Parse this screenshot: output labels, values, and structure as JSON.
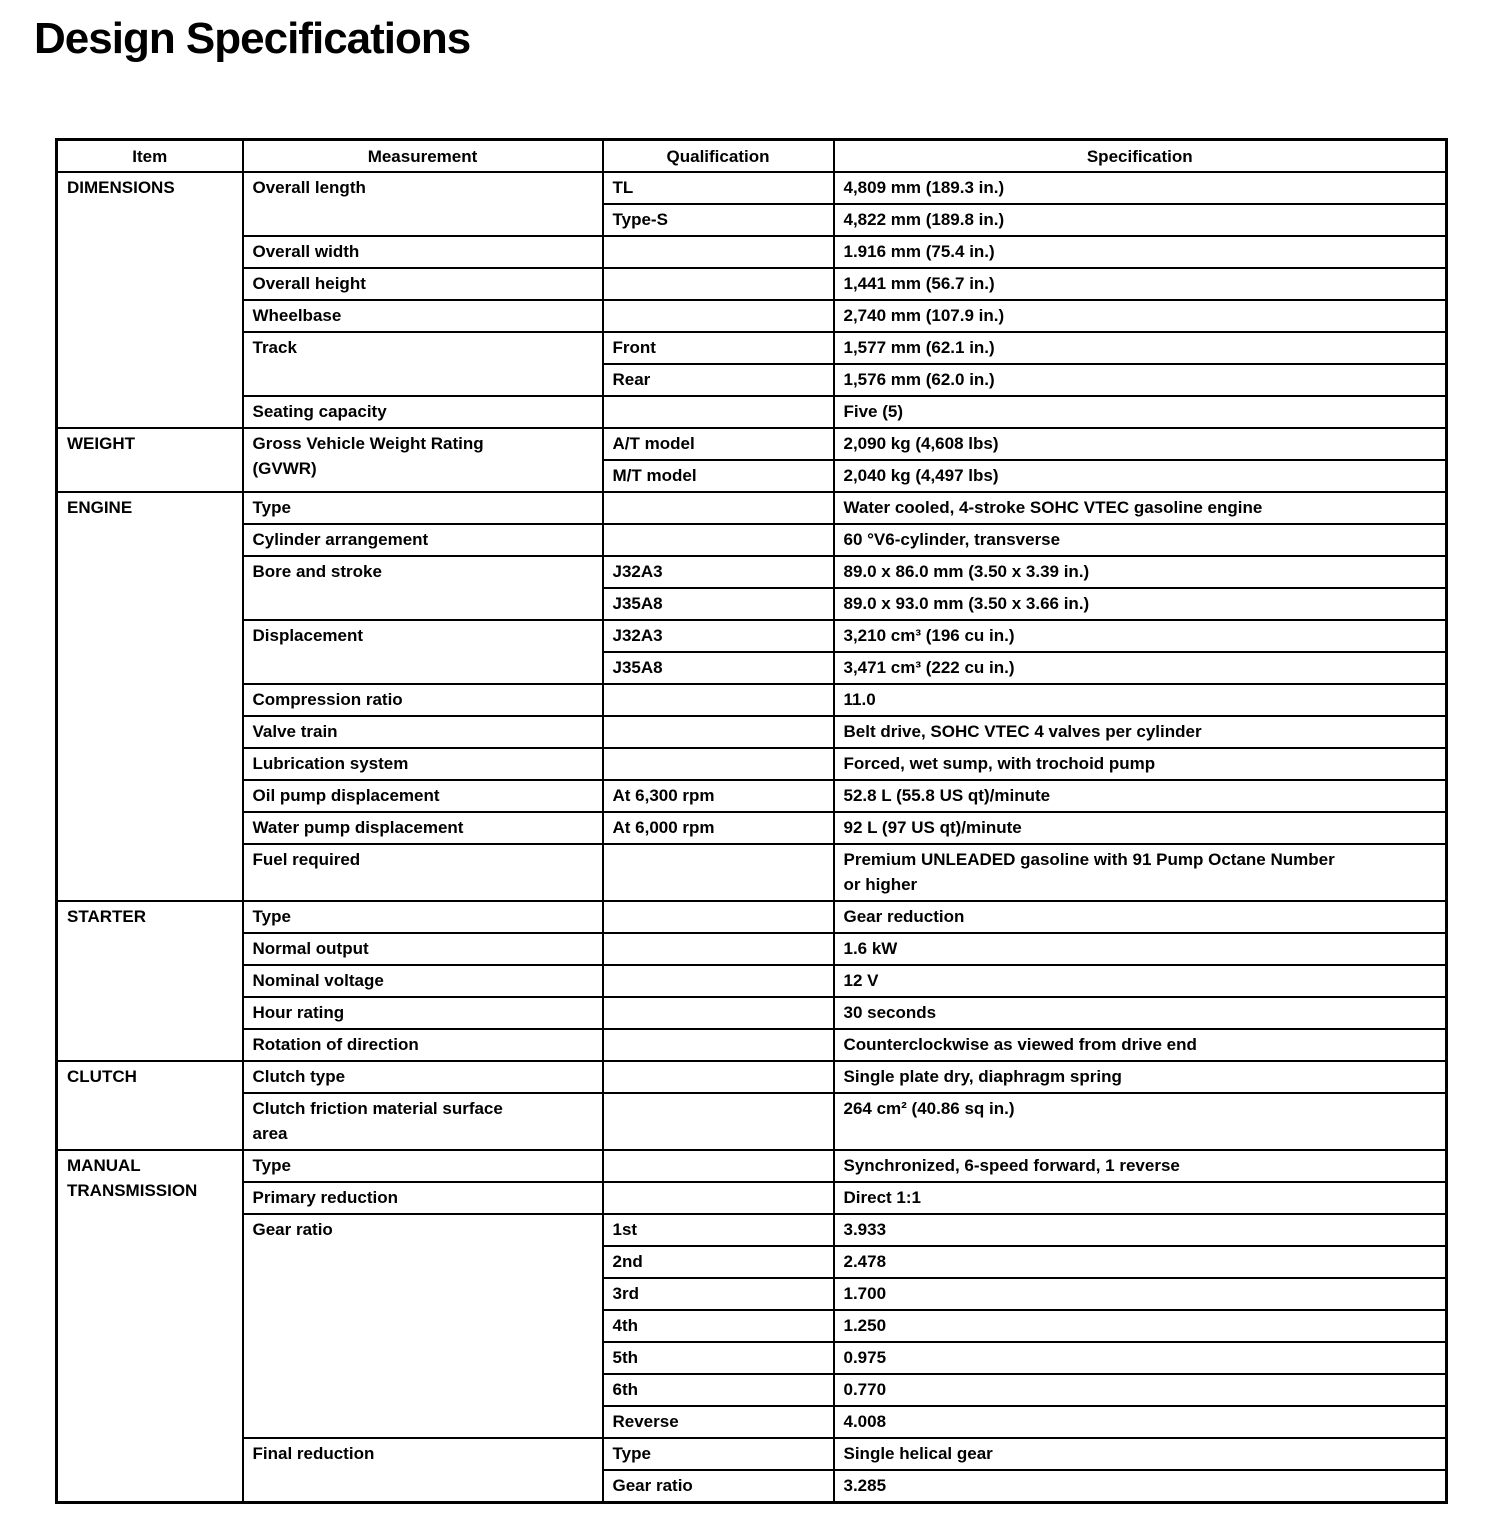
{
  "page": {
    "title": "Design Specifications"
  },
  "table": {
    "headers": [
      "Item",
      "Measurement",
      "Qualification",
      "Specification"
    ],
    "sections": [
      {
        "item": "DIMENSIONS",
        "rows": [
          {
            "m": "Overall length",
            "span": 2,
            "q": "TL",
            "s": "4,809 mm (189.3 in.)"
          },
          {
            "q": "Type-S",
            "s": "4,822 mm (189.8 in.)"
          },
          {
            "m": "Overall width",
            "q": "",
            "s": "1.916 mm (75.4 in.)"
          },
          {
            "m": "Overall height",
            "q": "",
            "s": "1,441 mm (56.7 in.)"
          },
          {
            "m": "Wheelbase",
            "q": "",
            "s": "2,740 mm (107.9 in.)"
          },
          {
            "m": "Track",
            "span": 2,
            "q": "Front",
            "s": "1,577 mm (62.1 in.)"
          },
          {
            "q": "Rear",
            "s": "1,576 mm (62.0 in.)"
          },
          {
            "m": "Seating capacity",
            "q": "",
            "s": "Five (5)"
          }
        ]
      },
      {
        "item": "WEIGHT",
        "rows": [
          {
            "m": "Gross Vehicle Weight Rating\n(GVWR)",
            "span": 2,
            "q": "A/T model",
            "s": "2,090 kg (4,608 lbs)"
          },
          {
            "q": "M/T model",
            "s": "2,040 kg (4,497 lbs)"
          }
        ]
      },
      {
        "item": "ENGINE",
        "rows": [
          {
            "m": "Type",
            "q": "",
            "s": "Water cooled, 4-stroke SOHC VTEC gasoline engine"
          },
          {
            "m": "Cylinder arrangement",
            "q": "",
            "s": "60 °V6-cylinder, transverse"
          },
          {
            "m": "Bore and stroke",
            "span": 2,
            "q": "J32A3",
            "s": "89.0 x 86.0 mm (3.50 x 3.39 in.)"
          },
          {
            "q": "J35A8",
            "s": "89.0 x 93.0 mm (3.50 x 3.66 in.)"
          },
          {
            "m": "Displacement",
            "span": 2,
            "q": "J32A3",
            "s": "3,210 cm³ (196 cu in.)"
          },
          {
            "q": "J35A8",
            "s": "3,471 cm³ (222 cu in.)"
          },
          {
            "m": "Compression ratio",
            "q": "",
            "s": "11.0"
          },
          {
            "m": "Valve train",
            "q": "",
            "s": "Belt drive, SOHC VTEC 4 valves per cylinder"
          },
          {
            "m": "Lubrication system",
            "q": "",
            "s": "Forced, wet sump, with trochoid pump"
          },
          {
            "m": "Oil pump displacement",
            "q": "At 6,300 rpm",
            "s": "52.8 L (55.8 US qt)/minute"
          },
          {
            "m": "Water pump displacement",
            "q": "At 6,000 rpm",
            "s": "92 L (97 US qt)/minute"
          },
          {
            "m": "Fuel required",
            "q": "",
            "s": "Premium UNLEADED gasoline with 91 Pump Octane Number\nor higher"
          }
        ]
      },
      {
        "item": "STARTER",
        "rows": [
          {
            "m": "Type",
            "q": "",
            "s": "Gear reduction"
          },
          {
            "m": "Normal output",
            "q": "",
            "s": "1.6 kW"
          },
          {
            "m": "Nominal voltage",
            "q": "",
            "s": "12 V"
          },
          {
            "m": "Hour rating",
            "q": "",
            "s": "30 seconds"
          },
          {
            "m": "Rotation of direction",
            "q": "",
            "s": "Counterclockwise as viewed from drive end"
          }
        ]
      },
      {
        "item": "CLUTCH",
        "rows": [
          {
            "m": "Clutch type",
            "q": "",
            "s": "Single plate dry, diaphragm spring"
          },
          {
            "m": "Clutch friction material surface\narea",
            "q": "",
            "s": "264 cm² (40.86 sq in.)"
          }
        ]
      },
      {
        "item": "MANUAL\nTRANSMISSION",
        "rows": [
          {
            "m": "Type",
            "q": "",
            "s": "Synchronized, 6-speed forward, 1 reverse"
          },
          {
            "m": "Primary reduction",
            "q": "",
            "s": "Direct 1:1"
          },
          {
            "m": "Gear ratio",
            "span": 7,
            "q": "1st",
            "s": "3.933"
          },
          {
            "q": "2nd",
            "s": "2.478"
          },
          {
            "q": "3rd",
            "s": "1.700"
          },
          {
            "q": "4th",
            "s": "1.250"
          },
          {
            "q": "5th",
            "s": "0.975"
          },
          {
            "q": "6th",
            "s": "0.770"
          },
          {
            "q": "Reverse",
            "s": "4.008"
          },
          {
            "m": "Final reduction",
            "span": 2,
            "q": "Type",
            "s": "Single helical gear"
          },
          {
            "q": "Gear ratio",
            "s": "3.285"
          }
        ]
      }
    ]
  }
}
